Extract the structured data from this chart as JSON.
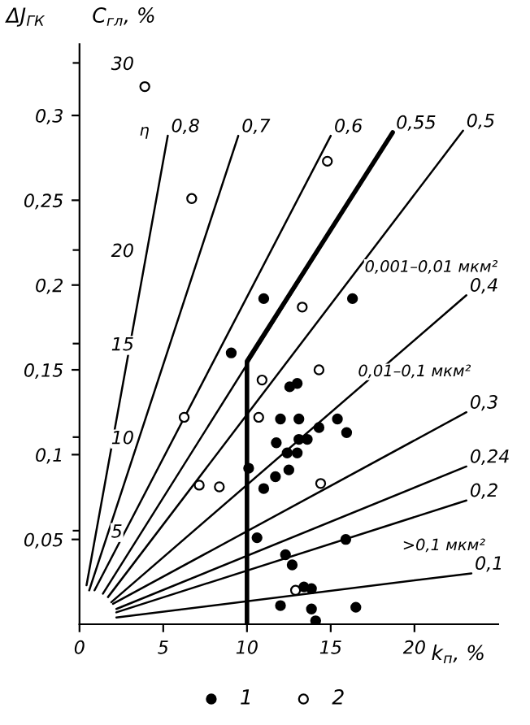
{
  "chart_data": {
    "type": "scatter",
    "xlabel": "k$_{п}$, %",
    "ylabel": "ΔJ$_{ГК}$",
    "y2label": "C$_{гл}$, %",
    "xlim": [
      0,
      25
    ],
    "xticks": [
      0,
      5,
      10,
      15,
      20
    ],
    "ylim": [
      0,
      0.342
    ],
    "yticks": [
      {
        "value": 0.05,
        "label": "0,05"
      },
      {
        "value": 0.1,
        "label": "0,1"
      },
      {
        "value": 0.15,
        "label": "0,15"
      },
      {
        "value": 0.2,
        "label": "0,2"
      },
      {
        "value": 0.25,
        "label": "0,25"
      },
      {
        "value": 0.3,
        "label": "0,3"
      }
    ],
    "y2lim": [
      0,
      31
    ],
    "y2ticks": [
      5,
      10,
      15,
      20,
      30
    ],
    "grid": false,
    "legend": "bottom",
    "annotations": [
      "η",
      "0,001–0,01 мкм²",
      "0,01–0,1 мкм²",
      ">0,1 мкм²"
    ],
    "series": [
      {
        "name": "0,8",
        "type": "line",
        "color": "#000000",
        "x": [
          0.42,
          5.27
        ],
        "values": [
          0.023,
          0.288
        ]
      },
      {
        "name": "0,7",
        "type": "line",
        "color": "#000000",
        "x": [
          0.58,
          9.48
        ],
        "values": [
          0.02,
          0.288
        ]
      },
      {
        "name": "0,6",
        "type": "line",
        "color": "#000000",
        "x": [
          0.9,
          15.0
        ],
        "values": [
          0.02,
          0.288
        ]
      },
      {
        "name": "0,55",
        "type": "line",
        "color": "#000000",
        "x": [
          1.4,
          18.7
        ],
        "values": [
          0.018,
          0.29
        ]
      },
      {
        "name": "0,5",
        "type": "line",
        "color": "#000000",
        "x": [
          1.7,
          22.9
        ],
        "values": [
          0.016,
          0.291
        ]
      },
      {
        "name": "0,4",
        "type": "line",
        "color": "#000000",
        "x": [
          1.9,
          23.1
        ],
        "values": [
          0.013,
          0.194
        ]
      },
      {
        "name": "0,3",
        "type": "line",
        "color": "#000000",
        "x": [
          2.0,
          23.1
        ],
        "values": [
          0.012,
          0.125
        ]
      },
      {
        "name": "0,24",
        "type": "line",
        "color": "#000000",
        "x": [
          2.2,
          23.1
        ],
        "values": [
          0.009,
          0.093
        ]
      },
      {
        "name": "0,2",
        "type": "line",
        "color": "#000000",
        "x": [
          2.2,
          23.1
        ],
        "values": [
          0.007,
          0.073
        ]
      },
      {
        "name": "0,1",
        "type": "line",
        "color": "#000000",
        "x": [
          2.2,
          23.4
        ],
        "values": [
          0.004,
          0.03
        ]
      },
      {
        "type": "line",
        "color": "#000000",
        "x": [
          10,
          10,
          18.7
        ],
        "values": [
          0,
          0.155,
          0.29
        ]
      },
      {
        "name": "1",
        "marker": "circle",
        "color": "#000000",
        "x": [
          11.0,
          16.3,
          9.06,
          12.55,
          13.0,
          12.0,
          13.1,
          15.4,
          14.3,
          15.95,
          11.75,
          13.1,
          13.6,
          12.4,
          13.0,
          10.1,
          12.5,
          11.7,
          11.0,
          10.6,
          15.9,
          12.3,
          12.7,
          13.4,
          13.85,
          12.0,
          13.85,
          14.1,
          16.5
        ],
        "values": [
          0.192,
          0.192,
          0.16,
          0.14,
          0.142,
          0.121,
          0.121,
          0.121,
          0.116,
          0.113,
          0.107,
          0.109,
          0.109,
          0.101,
          0.101,
          0.092,
          0.091,
          0.087,
          0.08,
          0.051,
          0.05,
          0.041,
          0.035,
          0.022,
          0.021,
          0.011,
          0.009,
          0.002,
          0.01
        ]
      },
      {
        "name": "2",
        "marker": "circle",
        "color": "#ffffff",
        "x": [
          3.9,
          6.7,
          14.8,
          13.3,
          14.3,
          10.9,
          6.25,
          10.7,
          7.15,
          8.35,
          14.4,
          12.9
        ],
        "values": [
          0.317,
          0.251,
          0.273,
          0.187,
          0.15,
          0.144,
          0.122,
          0.122,
          0.082,
          0.081,
          0.083,
          0.02
        ]
      }
    ]
  }
}
